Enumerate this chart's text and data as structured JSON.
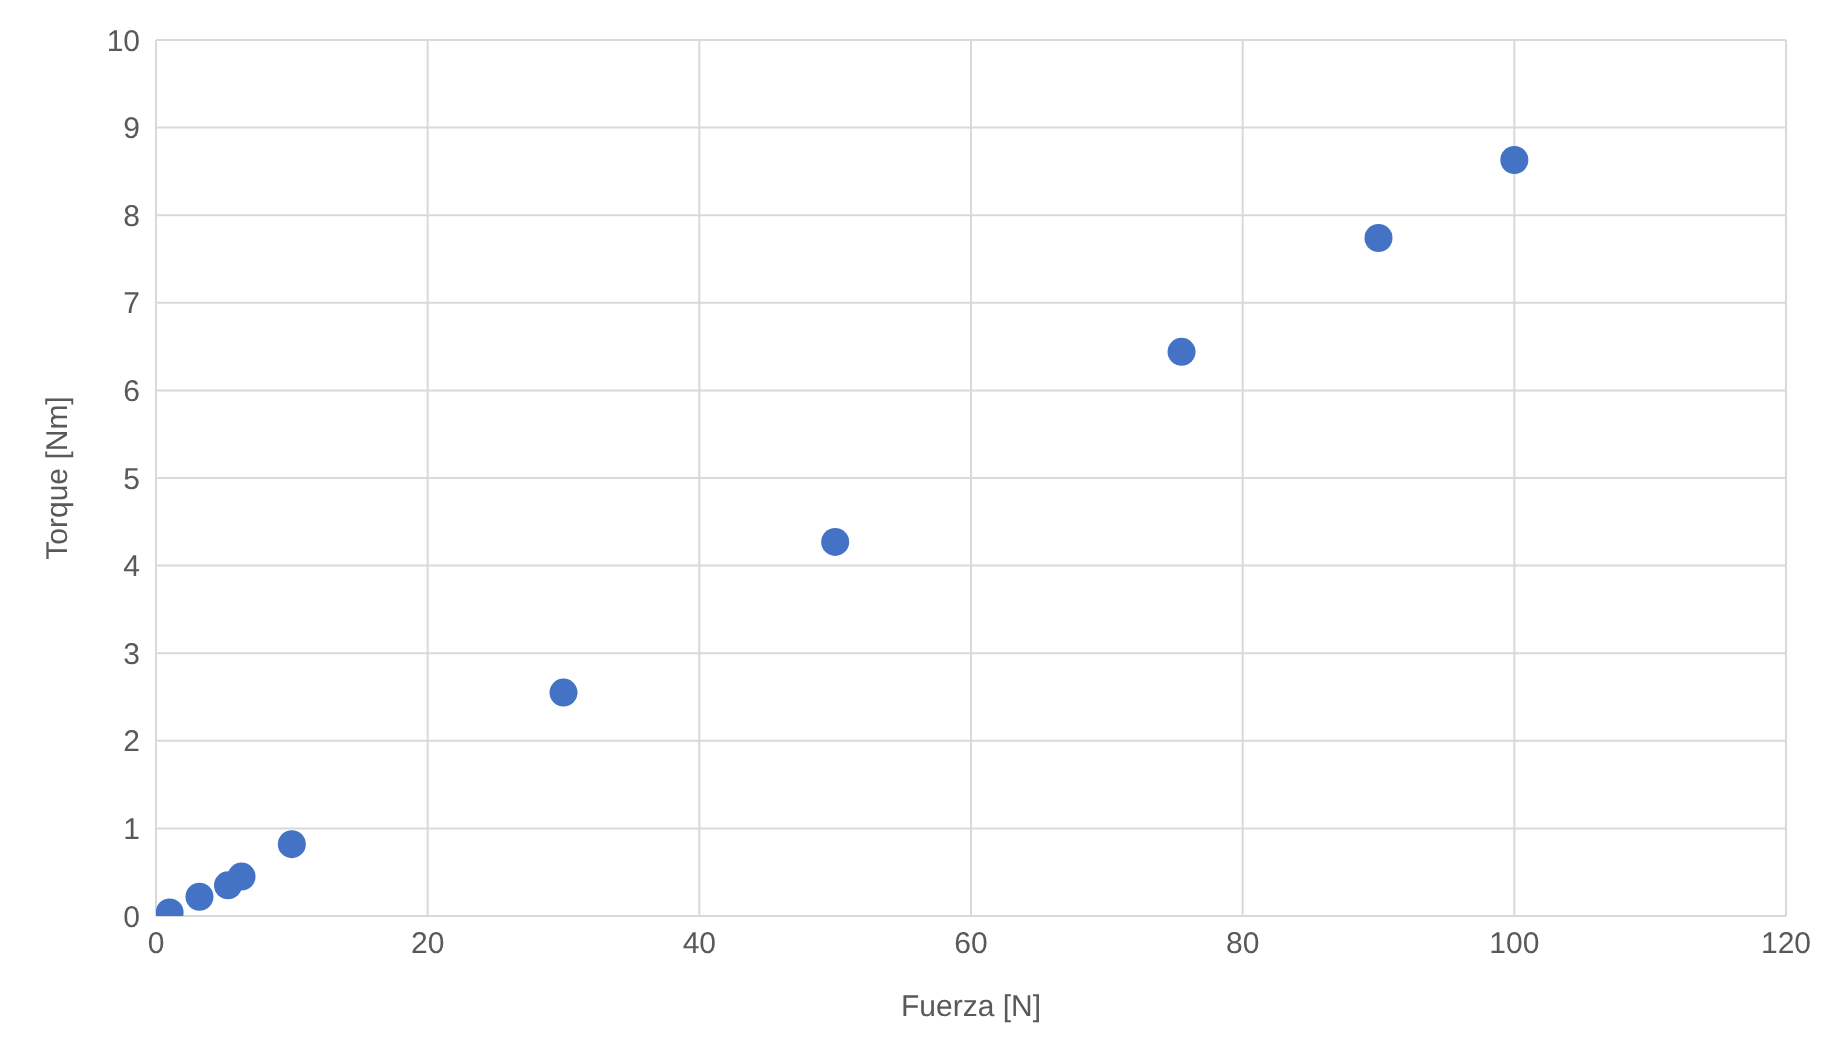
{
  "chart_data": {
    "type": "scatter",
    "xlabel": "Fuerza [N]",
    "ylabel": "Torque [Nm]",
    "x": [
      1,
      3.2,
      5.3,
      6.3,
      10,
      30,
      50,
      75.5,
      90,
      100
    ],
    "values": [
      0.04,
      0.22,
      0.35,
      0.45,
      0.82,
      2.55,
      4.27,
      6.44,
      7.74,
      8.63
    ],
    "color": "#4472c4",
    "marker": "circle",
    "xlim": [
      0,
      120
    ],
    "xticks": [
      0,
      20,
      40,
      60,
      80,
      100,
      120
    ],
    "ylim": [
      0,
      10
    ],
    "yticks": [
      0,
      1,
      2,
      3,
      4,
      5,
      6,
      7,
      8,
      9,
      10
    ],
    "grid": true
  }
}
